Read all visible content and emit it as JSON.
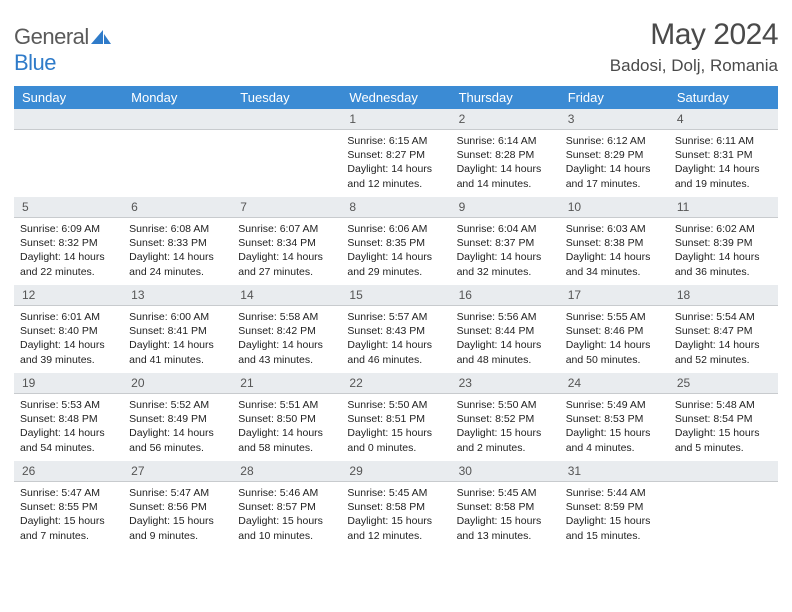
{
  "brand": {
    "name_part1": "General",
    "name_part2": "Blue"
  },
  "header": {
    "month_title": "May 2024",
    "location": "Badosi, Dolj, Romania"
  },
  "colors": {
    "header_bg": "#3b8bd4",
    "header_fg": "#ffffff",
    "daynum_bg": "#e9ecef",
    "row_divider": "#0c2a46",
    "logo_mark": "#2f7bc9",
    "text": "#222222"
  },
  "day_names": [
    "Sunday",
    "Monday",
    "Tuesday",
    "Wednesday",
    "Thursday",
    "Friday",
    "Saturday"
  ],
  "weeks": [
    [
      {
        "n": "",
        "sr": "",
        "ss": "",
        "dl1": "",
        "dl2": ""
      },
      {
        "n": "",
        "sr": "",
        "ss": "",
        "dl1": "",
        "dl2": ""
      },
      {
        "n": "",
        "sr": "",
        "ss": "",
        "dl1": "",
        "dl2": ""
      },
      {
        "n": "1",
        "sr": "Sunrise: 6:15 AM",
        "ss": "Sunset: 8:27 PM",
        "dl1": "Daylight: 14 hours",
        "dl2": "and 12 minutes."
      },
      {
        "n": "2",
        "sr": "Sunrise: 6:14 AM",
        "ss": "Sunset: 8:28 PM",
        "dl1": "Daylight: 14 hours",
        "dl2": "and 14 minutes."
      },
      {
        "n": "3",
        "sr": "Sunrise: 6:12 AM",
        "ss": "Sunset: 8:29 PM",
        "dl1": "Daylight: 14 hours",
        "dl2": "and 17 minutes."
      },
      {
        "n": "4",
        "sr": "Sunrise: 6:11 AM",
        "ss": "Sunset: 8:31 PM",
        "dl1": "Daylight: 14 hours",
        "dl2": "and 19 minutes."
      }
    ],
    [
      {
        "n": "5",
        "sr": "Sunrise: 6:09 AM",
        "ss": "Sunset: 8:32 PM",
        "dl1": "Daylight: 14 hours",
        "dl2": "and 22 minutes."
      },
      {
        "n": "6",
        "sr": "Sunrise: 6:08 AM",
        "ss": "Sunset: 8:33 PM",
        "dl1": "Daylight: 14 hours",
        "dl2": "and 24 minutes."
      },
      {
        "n": "7",
        "sr": "Sunrise: 6:07 AM",
        "ss": "Sunset: 8:34 PM",
        "dl1": "Daylight: 14 hours",
        "dl2": "and 27 minutes."
      },
      {
        "n": "8",
        "sr": "Sunrise: 6:06 AM",
        "ss": "Sunset: 8:35 PM",
        "dl1": "Daylight: 14 hours",
        "dl2": "and 29 minutes."
      },
      {
        "n": "9",
        "sr": "Sunrise: 6:04 AM",
        "ss": "Sunset: 8:37 PM",
        "dl1": "Daylight: 14 hours",
        "dl2": "and 32 minutes."
      },
      {
        "n": "10",
        "sr": "Sunrise: 6:03 AM",
        "ss": "Sunset: 8:38 PM",
        "dl1": "Daylight: 14 hours",
        "dl2": "and 34 minutes."
      },
      {
        "n": "11",
        "sr": "Sunrise: 6:02 AM",
        "ss": "Sunset: 8:39 PM",
        "dl1": "Daylight: 14 hours",
        "dl2": "and 36 minutes."
      }
    ],
    [
      {
        "n": "12",
        "sr": "Sunrise: 6:01 AM",
        "ss": "Sunset: 8:40 PM",
        "dl1": "Daylight: 14 hours",
        "dl2": "and 39 minutes."
      },
      {
        "n": "13",
        "sr": "Sunrise: 6:00 AM",
        "ss": "Sunset: 8:41 PM",
        "dl1": "Daylight: 14 hours",
        "dl2": "and 41 minutes."
      },
      {
        "n": "14",
        "sr": "Sunrise: 5:58 AM",
        "ss": "Sunset: 8:42 PM",
        "dl1": "Daylight: 14 hours",
        "dl2": "and 43 minutes."
      },
      {
        "n": "15",
        "sr": "Sunrise: 5:57 AM",
        "ss": "Sunset: 8:43 PM",
        "dl1": "Daylight: 14 hours",
        "dl2": "and 46 minutes."
      },
      {
        "n": "16",
        "sr": "Sunrise: 5:56 AM",
        "ss": "Sunset: 8:44 PM",
        "dl1": "Daylight: 14 hours",
        "dl2": "and 48 minutes."
      },
      {
        "n": "17",
        "sr": "Sunrise: 5:55 AM",
        "ss": "Sunset: 8:46 PM",
        "dl1": "Daylight: 14 hours",
        "dl2": "and 50 minutes."
      },
      {
        "n": "18",
        "sr": "Sunrise: 5:54 AM",
        "ss": "Sunset: 8:47 PM",
        "dl1": "Daylight: 14 hours",
        "dl2": "and 52 minutes."
      }
    ],
    [
      {
        "n": "19",
        "sr": "Sunrise: 5:53 AM",
        "ss": "Sunset: 8:48 PM",
        "dl1": "Daylight: 14 hours",
        "dl2": "and 54 minutes."
      },
      {
        "n": "20",
        "sr": "Sunrise: 5:52 AM",
        "ss": "Sunset: 8:49 PM",
        "dl1": "Daylight: 14 hours",
        "dl2": "and 56 minutes."
      },
      {
        "n": "21",
        "sr": "Sunrise: 5:51 AM",
        "ss": "Sunset: 8:50 PM",
        "dl1": "Daylight: 14 hours",
        "dl2": "and 58 minutes."
      },
      {
        "n": "22",
        "sr": "Sunrise: 5:50 AM",
        "ss": "Sunset: 8:51 PM",
        "dl1": "Daylight: 15 hours",
        "dl2": "and 0 minutes."
      },
      {
        "n": "23",
        "sr": "Sunrise: 5:50 AM",
        "ss": "Sunset: 8:52 PM",
        "dl1": "Daylight: 15 hours",
        "dl2": "and 2 minutes."
      },
      {
        "n": "24",
        "sr": "Sunrise: 5:49 AM",
        "ss": "Sunset: 8:53 PM",
        "dl1": "Daylight: 15 hours",
        "dl2": "and 4 minutes."
      },
      {
        "n": "25",
        "sr": "Sunrise: 5:48 AM",
        "ss": "Sunset: 8:54 PM",
        "dl1": "Daylight: 15 hours",
        "dl2": "and 5 minutes."
      }
    ],
    [
      {
        "n": "26",
        "sr": "Sunrise: 5:47 AM",
        "ss": "Sunset: 8:55 PM",
        "dl1": "Daylight: 15 hours",
        "dl2": "and 7 minutes."
      },
      {
        "n": "27",
        "sr": "Sunrise: 5:47 AM",
        "ss": "Sunset: 8:56 PM",
        "dl1": "Daylight: 15 hours",
        "dl2": "and 9 minutes."
      },
      {
        "n": "28",
        "sr": "Sunrise: 5:46 AM",
        "ss": "Sunset: 8:57 PM",
        "dl1": "Daylight: 15 hours",
        "dl2": "and 10 minutes."
      },
      {
        "n": "29",
        "sr": "Sunrise: 5:45 AM",
        "ss": "Sunset: 8:58 PM",
        "dl1": "Daylight: 15 hours",
        "dl2": "and 12 minutes."
      },
      {
        "n": "30",
        "sr": "Sunrise: 5:45 AM",
        "ss": "Sunset: 8:58 PM",
        "dl1": "Daylight: 15 hours",
        "dl2": "and 13 minutes."
      },
      {
        "n": "31",
        "sr": "Sunrise: 5:44 AM",
        "ss": "Sunset: 8:59 PM",
        "dl1": "Daylight: 15 hours",
        "dl2": "and 15 minutes."
      },
      {
        "n": "",
        "sr": "",
        "ss": "",
        "dl1": "",
        "dl2": ""
      }
    ]
  ]
}
